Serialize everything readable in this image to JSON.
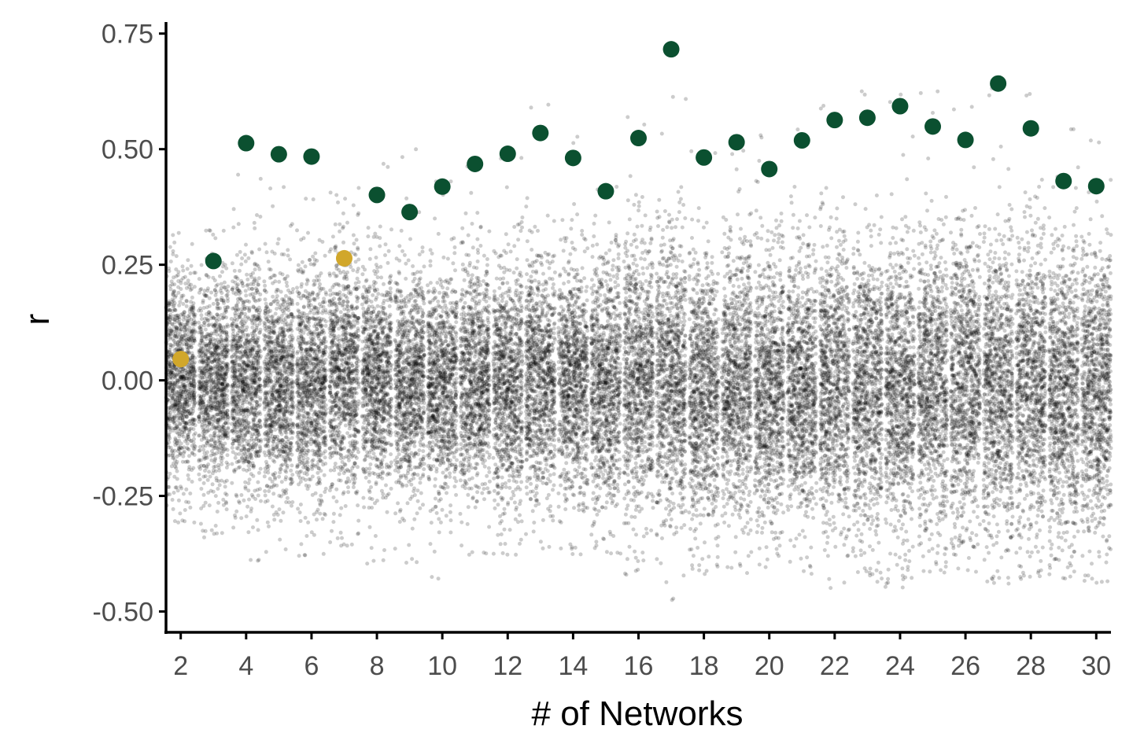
{
  "chart_data": {
    "type": "scatter",
    "title": "",
    "xlabel": "# of Networks",
    "ylabel": "r",
    "xlim": [
      1.55,
      30.45
    ],
    "ylim": [
      -0.545,
      0.775
    ],
    "x_ticks": [
      2,
      4,
      6,
      8,
      10,
      12,
      14,
      16,
      18,
      20,
      22,
      24,
      26,
      28,
      30
    ],
    "x_tick_labels": [
      "2",
      "4",
      "6",
      "8",
      "10",
      "12",
      "14",
      "16",
      "18",
      "20",
      "22",
      "24",
      "26",
      "28",
      "30"
    ],
    "y_ticks": [
      -0.5,
      -0.25,
      0,
      0.25,
      0.5,
      0.75
    ],
    "y_tick_labels": [
      "-0.50",
      "-0.25",
      "0.00",
      "0.25",
      "0.50",
      "0.75"
    ],
    "grid": false,
    "legend": "none",
    "colors": {
      "background": "#ffffff",
      "jitter_points": "#000000",
      "highlight_significant": "#0b5030",
      "highlight_nonsignificant": "#d1a72b"
    },
    "series": [
      {
        "role": "null-distribution-jittered",
        "color": "#000000",
        "opacity": 0.2,
        "x": [
          2,
          3,
          4,
          5,
          6,
          7,
          8,
          9,
          10,
          11,
          12,
          13,
          14,
          15,
          16,
          17,
          18,
          19,
          20,
          21,
          22,
          23,
          24,
          25,
          26,
          27,
          28,
          29,
          30
        ],
        "center": [
          0.01,
          -0.01,
          0.0,
          0.0,
          0.0,
          0.02,
          0.0,
          0.0,
          -0.01,
          0.0,
          -0.01,
          0.0,
          0.0,
          -0.01,
          0.0,
          0.0,
          -0.02,
          -0.01,
          -0.02,
          -0.01,
          -0.01,
          -0.02,
          -0.02,
          -0.01,
          -0.01,
          -0.02,
          -0.01,
          -0.02,
          -0.02
        ],
        "spread_sd": [
          0.11,
          0.11,
          0.12,
          0.12,
          0.12,
          0.13,
          0.12,
          0.12,
          0.12,
          0.12,
          0.13,
          0.13,
          0.13,
          0.13,
          0.14,
          0.15,
          0.14,
          0.14,
          0.14,
          0.14,
          0.15,
          0.15,
          0.15,
          0.15,
          0.15,
          0.16,
          0.15,
          0.15,
          0.15
        ],
        "y_min": [
          -0.31,
          -0.34,
          -0.4,
          -0.38,
          -0.38,
          -0.37,
          -0.4,
          -0.4,
          -0.44,
          -0.38,
          -0.38,
          -0.38,
          -0.38,
          -0.38,
          -0.43,
          -0.48,
          -0.42,
          -0.42,
          -0.41,
          -0.42,
          -0.45,
          -0.44,
          -0.45,
          -0.42,
          -0.42,
          -0.45,
          -0.43,
          -0.43,
          -0.44
        ],
        "y_max": [
          0.33,
          0.34,
          0.45,
          0.42,
          0.41,
          0.42,
          0.47,
          0.5,
          0.45,
          0.48,
          0.49,
          0.6,
          0.53,
          0.42,
          0.57,
          0.62,
          0.5,
          0.5,
          0.53,
          0.55,
          0.6,
          0.63,
          0.62,
          0.64,
          0.6,
          0.65,
          0.62,
          0.56,
          0.53
        ],
        "points_per_column": 1000
      },
      {
        "role": "observed-significant",
        "color": "#0b5030",
        "x": [
          3,
          4,
          5,
          6,
          8,
          9,
          10,
          11,
          12,
          13,
          14,
          15,
          16,
          17,
          18,
          19,
          20,
          21,
          22,
          23,
          24,
          25,
          26,
          27,
          28,
          29,
          30
        ],
        "y": [
          0.258,
          0.513,
          0.489,
          0.484,
          0.401,
          0.364,
          0.419,
          0.468,
          0.49,
          0.535,
          0.481,
          0.409,
          0.524,
          0.716,
          0.482,
          0.515,
          0.457,
          0.519,
          0.563,
          0.568,
          0.593,
          0.549,
          0.52,
          0.642,
          0.545,
          0.431,
          0.42
        ]
      },
      {
        "role": "observed-nonsignificant",
        "color": "#d1a72b",
        "x": [
          2,
          7
        ],
        "y": [
          0.046,
          0.264
        ]
      }
    ]
  }
}
